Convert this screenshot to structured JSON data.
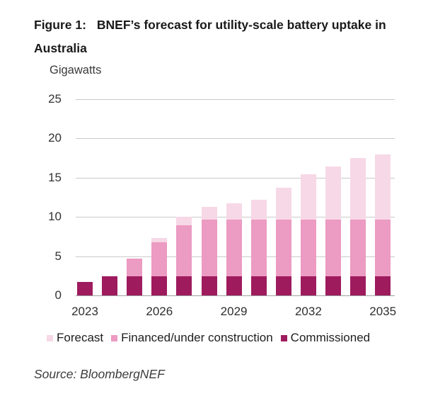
{
  "figure": {
    "label": "Figure 1:",
    "title": "BNEF’s forecast for utility-scale battery uptake in Australia",
    "source": "Source: BloombergNEF"
  },
  "chart_data": {
    "type": "bar",
    "stacked": true,
    "title": "Figure 1: BNEF’s forecast for utility-scale battery uptake in Australia",
    "ylabel": "Gigawatts",
    "xlabel": "",
    "categories": [
      2023,
      2024,
      2025,
      2026,
      2027,
      2028,
      2029,
      2030,
      2031,
      2032,
      2033,
      2034,
      2035
    ],
    "x_tick_labels": [
      "2023",
      "2026",
      "2029",
      "2032",
      "2035"
    ],
    "x_tick_indices": [
      0,
      3,
      6,
      9,
      12
    ],
    "ylim": [
      0,
      25
    ],
    "yticks": [
      0,
      5,
      10,
      15,
      20,
      25
    ],
    "grid": true,
    "legend_position": "bottom",
    "legend_order": [
      "Forecast",
      "Financed/under construction",
      "Commissioned"
    ],
    "series": [
      {
        "name": "Commissioned",
        "color": "#9e1b5e",
        "values": [
          1.7,
          2.4,
          2.4,
          2.4,
          2.4,
          2.4,
          2.4,
          2.4,
          2.4,
          2.4,
          2.4,
          2.4,
          2.4
        ]
      },
      {
        "name": "Financed/under construction",
        "color": "#ec9bc3",
        "values": [
          0,
          0,
          2.3,
          4.4,
          6.5,
          7.3,
          7.3,
          7.3,
          7.3,
          7.3,
          7.3,
          7.3,
          7.3
        ]
      },
      {
        "name": "Forecast",
        "color": "#f7d8e6",
        "values": [
          0,
          0,
          0,
          0.5,
          1.1,
          1.6,
          2.0,
          2.5,
          4.0,
          5.7,
          6.7,
          7.8,
          8.3
        ]
      }
    ],
    "totals": [
      1.7,
      2.4,
      4.7,
      7.3,
      10.0,
      11.3,
      11.7,
      12.2,
      13.7,
      15.4,
      16.4,
      17.5,
      18.0
    ],
    "colors": {
      "gridline": "#c9c9c9",
      "axis_baseline": "#9f9f9f",
      "text": "#333333"
    }
  }
}
